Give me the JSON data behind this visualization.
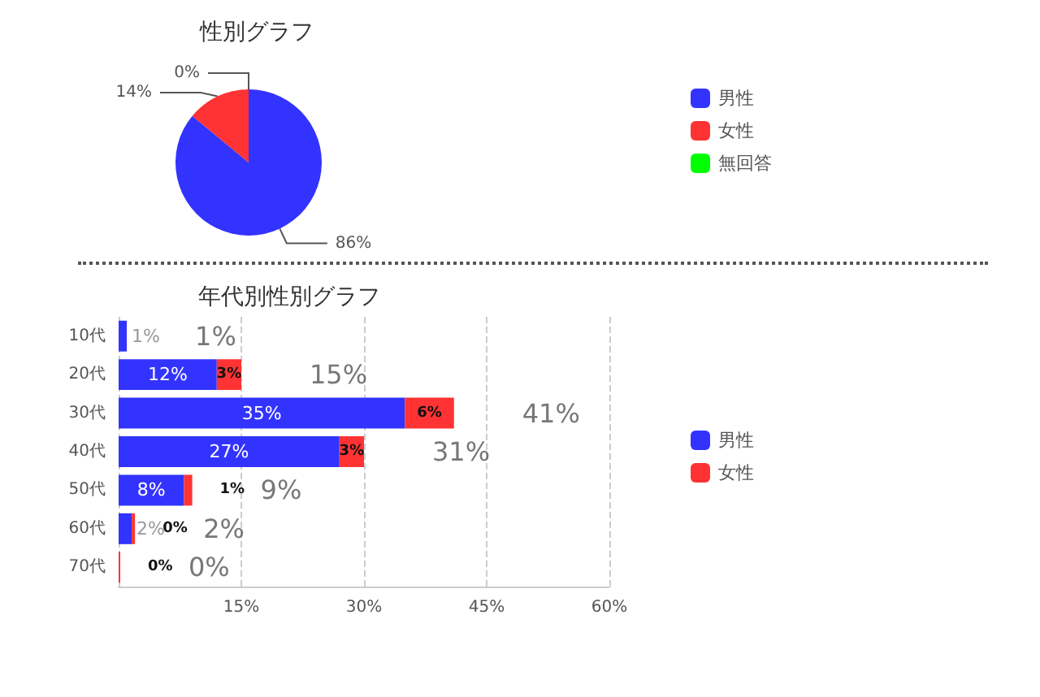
{
  "chart_data": [
    {
      "type": "pie",
      "title": "性別グラフ",
      "categories": [
        "男性",
        "女性",
        "無回答"
      ],
      "values": [
        86,
        14,
        0
      ],
      "colors": [
        "#3333ff",
        "#ff3333",
        "#00ff00"
      ],
      "value_labels": [
        "86%",
        "14%",
        "0%"
      ],
      "legend": "right"
    },
    {
      "type": "bar",
      "title": "年代別性別グラフ",
      "orientation": "horizontal",
      "stacked": true,
      "categories": [
        "10代",
        "20代",
        "30代",
        "40代",
        "50代",
        "60代",
        "70代"
      ],
      "series": [
        {
          "name": "男性",
          "color": "#3333ff",
          "values": [
            1,
            12,
            35,
            27,
            8,
            1.6,
            0
          ],
          "value_labels": [
            "1%",
            "12%",
            "35%",
            "27%",
            "8%",
            "2%",
            null
          ]
        },
        {
          "name": "女性",
          "color": "#ff3333",
          "values": [
            0,
            3,
            6,
            3,
            1,
            0.4,
            0.2
          ],
          "value_labels": [
            null,
            "3%",
            "6%",
            "3%",
            "1%",
            "0%",
            "0%"
          ]
        }
      ],
      "totals": [
        "1%",
        "15%",
        "41%",
        "31%",
        "9%",
        "2%",
        "0%"
      ],
      "xlim": [
        0,
        60
      ],
      "xticks": [
        {
          "value": 0,
          "label": null
        },
        {
          "value": 15,
          "label": "15%"
        },
        {
          "value": 30,
          "label": "30%"
        },
        {
          "value": 45,
          "label": "45%"
        },
        {
          "value": 60,
          "label": "60%"
        }
      ],
      "grid": "x",
      "legend": "right"
    }
  ]
}
